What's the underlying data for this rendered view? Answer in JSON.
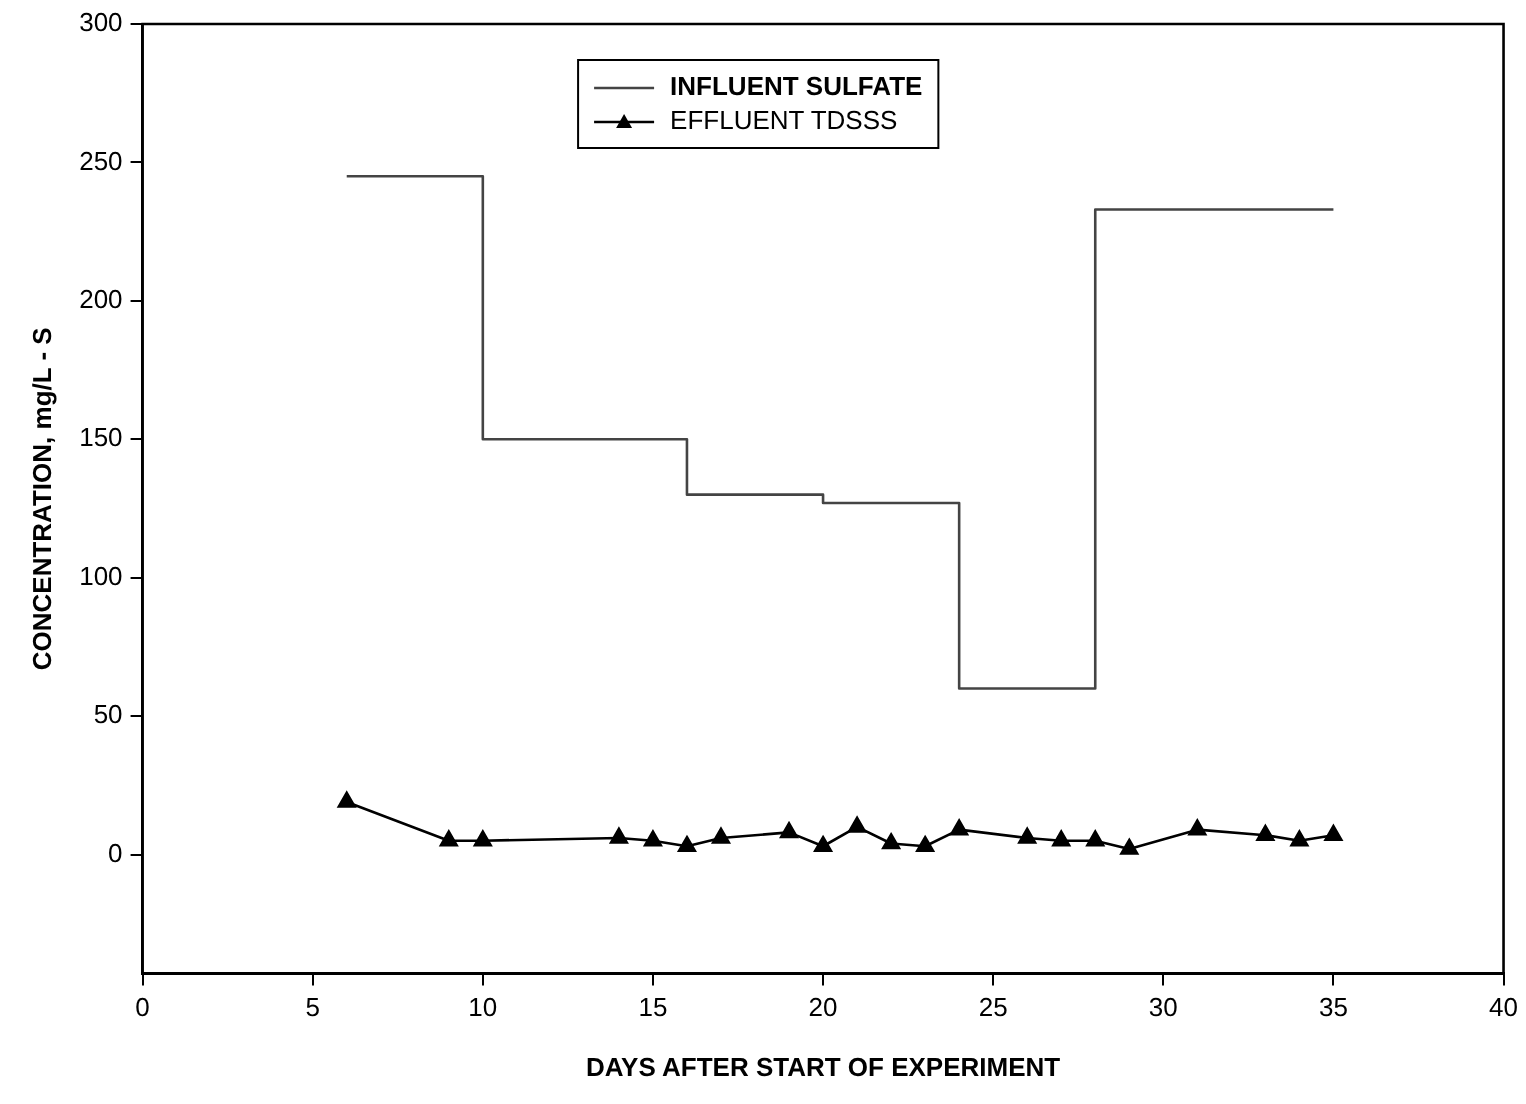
{
  "chart_data": {
    "type": "line",
    "xlabel": "DAYS AFTER START OF EXPERIMENT",
    "ylabel": "CONCENTRATION, mg/L - S",
    "xlim": [
      0,
      40
    ],
    "xticks": [
      0,
      5,
      10,
      15,
      20,
      25,
      30,
      35,
      40
    ],
    "ylim": [
      -43,
      300
    ],
    "yticks": [
      0,
      50,
      100,
      150,
      200,
      250,
      300
    ],
    "grid": false,
    "legend": "top",
    "series": [
      {
        "name": "INFLUENT SULFATE",
        "type": "step",
        "color": "#444444",
        "marker": "none",
        "x": [
          6,
          10,
          16,
          20,
          24,
          28,
          35
        ],
        "values": [
          245,
          150,
          130,
          127,
          60,
          233,
          233
        ]
      },
      {
        "name": "EFFLUENT TDSSS",
        "type": "line",
        "color": "#000000",
        "marker": "triangle",
        "x": [
          6,
          9,
          10,
          14,
          15,
          16,
          17,
          19,
          20,
          21,
          22,
          23,
          24,
          26,
          27,
          28,
          29,
          31,
          33,
          34,
          35
        ],
        "values": [
          19,
          5,
          5,
          6,
          5,
          3,
          6,
          8,
          3,
          10,
          4,
          3,
          9,
          6,
          5,
          5,
          2,
          9,
          7,
          5,
          7
        ]
      }
    ]
  }
}
